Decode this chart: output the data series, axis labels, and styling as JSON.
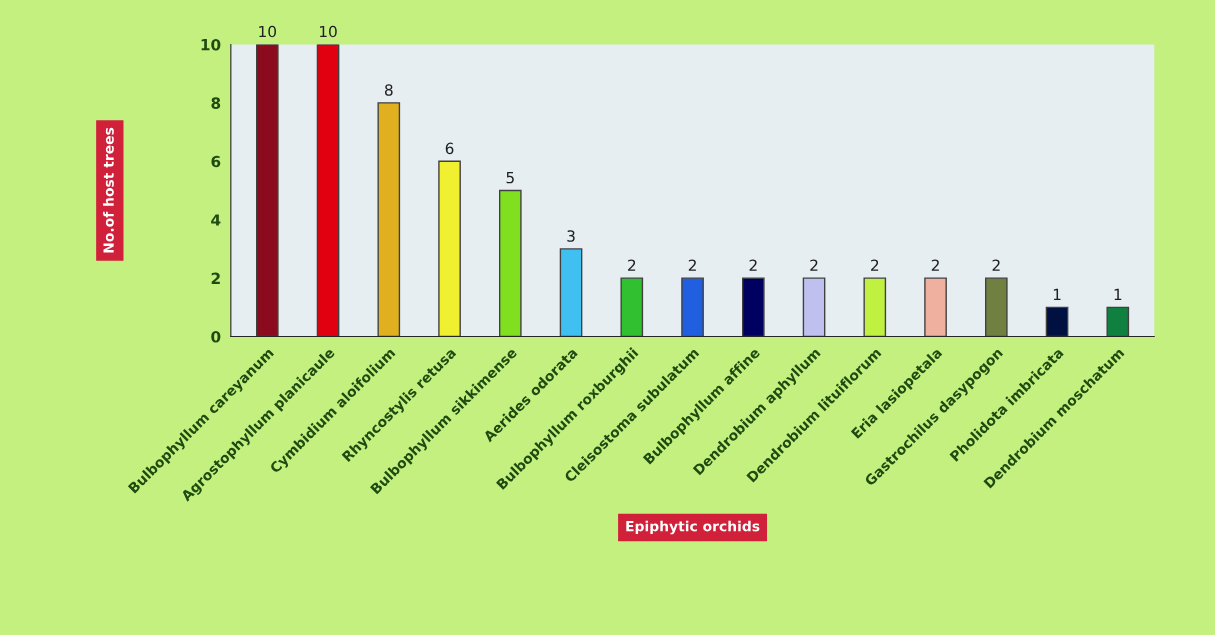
{
  "chart_data": {
    "type": "bar",
    "xlabel": "Epiphytic orchids",
    "ylabel": "No.of host trees",
    "categories": [
      "Bulbophyllum careyanum",
      "Agrostophyllum planicaule",
      "Cymbidium aloifolium",
      "Rhyncostylis retusa",
      "Bulbophyllum sikkimense",
      "Aerides odorata",
      "Bulbophyllum roxburghii",
      "Cleisostoma subulatum",
      "Bulbophyllum affine",
      "Dendrobium aphyllum",
      "Dendrobium lituiflorum",
      "Eria lasiopetala",
      "Gastrochilus dasypogon",
      "Pholidota imbricata",
      "Dendrobium moschatum"
    ],
    "values": [
      10,
      10,
      8,
      6,
      5,
      3,
      2,
      2,
      2,
      2,
      2,
      2,
      2,
      1,
      1
    ],
    "colors": [
      "#8b0a1e",
      "#e00010",
      "#e0b020",
      "#f0f030",
      "#80e020",
      "#40c0f0",
      "#30c030",
      "#2060e0",
      "#000060",
      "#c0c0f0",
      "#c0f040",
      "#f0b0a0",
      "#708040",
      "#001040",
      "#108040"
    ],
    "ylim": [
      0,
      10
    ],
    "yticks": [
      0,
      2,
      4,
      6,
      8,
      10
    ],
    "data_labels": true,
    "grid": false,
    "legend": false
  }
}
